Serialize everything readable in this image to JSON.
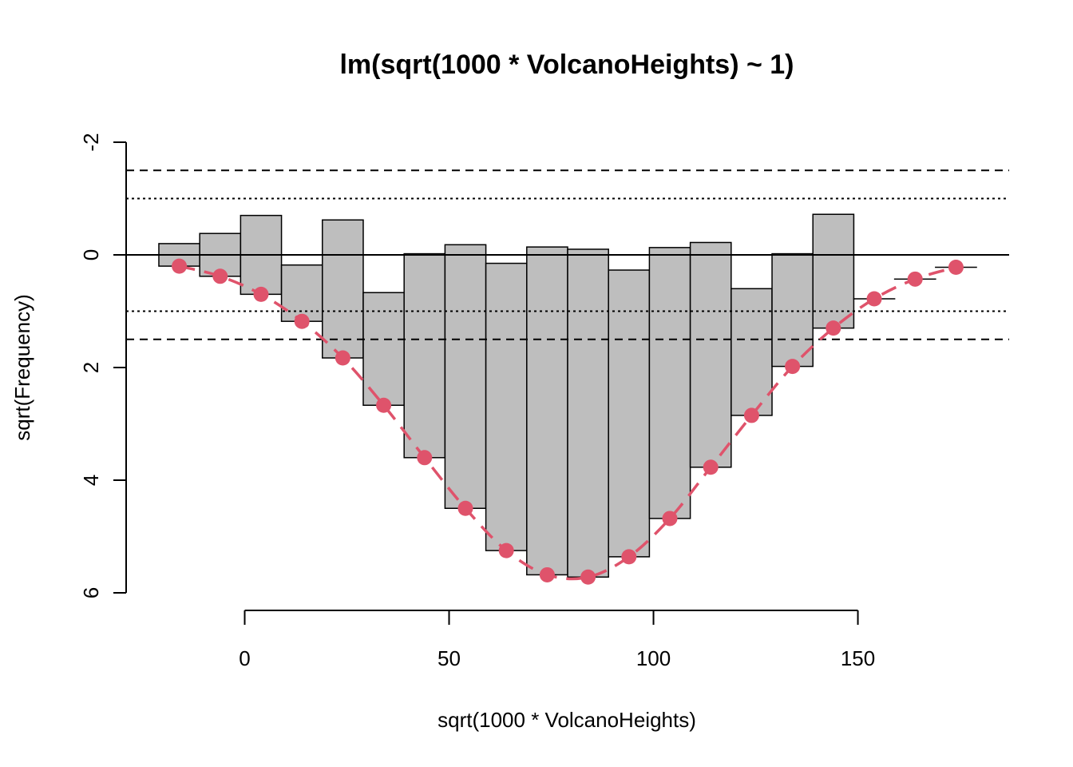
{
  "chart_data": {
    "type": "bar",
    "subtype": "hanging-rootogram",
    "title": "lm(sqrt(1000 * VolcanoHeights) ~ 1)",
    "xlabel": "sqrt(1000 * VolcanoHeights)",
    "ylabel": "sqrt(Frequency)",
    "xlim": [
      -29,
      187
    ],
    "ylim": [
      -2,
      6
    ],
    "y_reversed": true,
    "x_ticks": [
      0,
      50,
      100,
      150
    ],
    "y_ticks": [
      -2,
      0,
      2,
      4,
      6
    ],
    "reference_lines": {
      "zero": 0,
      "dotted": [
        -1,
        1
      ],
      "dashed": [
        -1.5,
        1.5
      ]
    },
    "colors": {
      "bar_fill": "#bebebe",
      "fit": "#df536b"
    },
    "bins": [
      {
        "left": -21,
        "right": -11,
        "top": 0.2,
        "bottom": -0.2
      },
      {
        "left": -11,
        "right": -1,
        "top": 0.38,
        "bottom": -0.38
      },
      {
        "left": -1,
        "right": 9,
        "top": 0.7,
        "bottom": -0.7
      },
      {
        "left": 9,
        "right": 19,
        "top": 1.18,
        "bottom": 0.18
      },
      {
        "left": 19,
        "right": 29,
        "top": 1.83,
        "bottom": -0.62
      },
      {
        "left": 29,
        "right": 39,
        "top": 2.67,
        "bottom": 0.67
      },
      {
        "left": 39,
        "right": 49,
        "top": 3.6,
        "bottom": -0.02
      },
      {
        "left": 49,
        "right": 59,
        "top": 4.5,
        "bottom": -0.18
      },
      {
        "left": 59,
        "right": 69,
        "top": 5.25,
        "bottom": 0.15
      },
      {
        "left": 69,
        "right": 79,
        "top": 5.68,
        "bottom": -0.14
      },
      {
        "left": 79,
        "right": 89,
        "top": 5.72,
        "bottom": -0.1
      },
      {
        "left": 89,
        "right": 99,
        "top": 5.36,
        "bottom": 0.27
      },
      {
        "left": 99,
        "right": 109,
        "top": 4.68,
        "bottom": -0.13
      },
      {
        "left": 109,
        "right": 119,
        "top": 3.77,
        "bottom": -0.22
      },
      {
        "left": 119,
        "right": 129,
        "top": 2.85,
        "bottom": 0.6
      },
      {
        "left": 129,
        "right": 139,
        "top": 1.98,
        "bottom": -0.02
      },
      {
        "left": 139,
        "right": 149,
        "top": 1.3,
        "bottom": -0.72
      },
      {
        "left": 149,
        "right": 159,
        "top": 0.78,
        "bottom": 0.78
      },
      {
        "left": 159,
        "right": 169,
        "top": 0.43,
        "bottom": 0.43
      },
      {
        "left": 169,
        "right": 179,
        "top": 0.22,
        "bottom": 0.22
      }
    ]
  }
}
